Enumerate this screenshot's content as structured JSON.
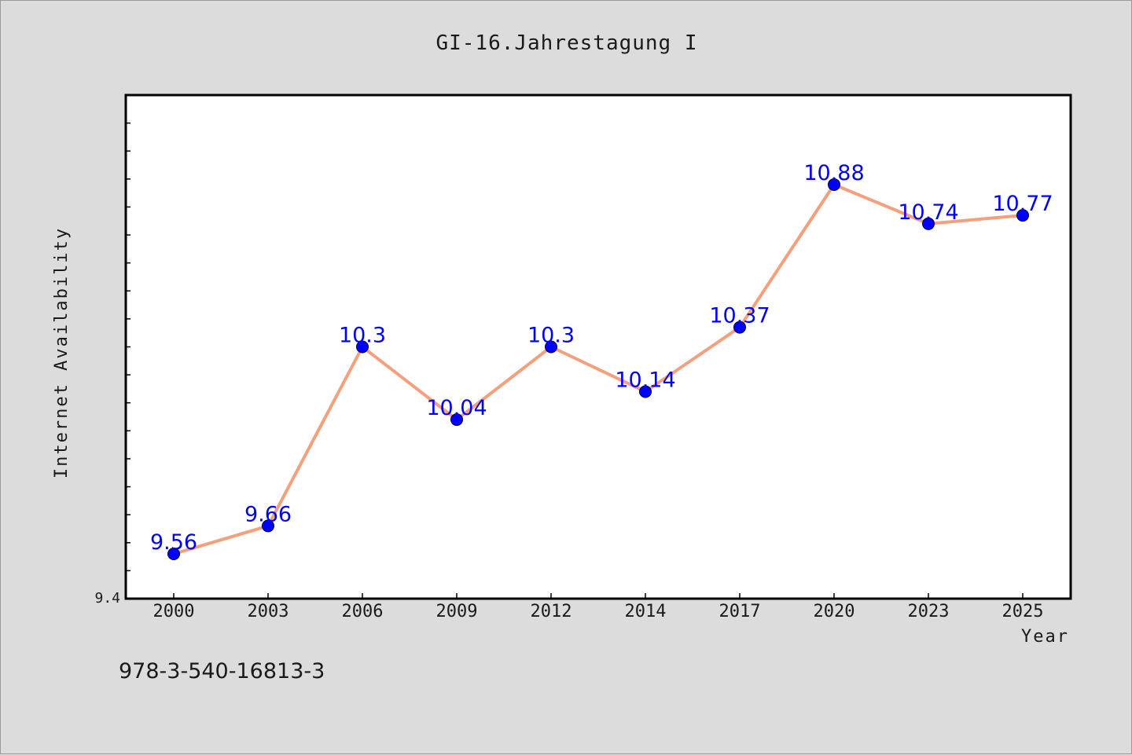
{
  "chart_data": {
    "type": "line",
    "title": "GI-16.Jahrestagung I",
    "xlabel": "Year",
    "ylabel": "Internet Availability",
    "categories": [
      "2000",
      "2003",
      "2006",
      "2009",
      "2012",
      "2014",
      "2017",
      "2020",
      "2023",
      "2025"
    ],
    "series": [
      {
        "values": [
          9.56,
          9.66,
          10.3,
          10.04,
          10.3,
          10.14,
          10.37,
          10.88,
          10.74,
          10.77
        ]
      }
    ],
    "data_labels": [
      "9.56",
      "9.66",
      "10.3",
      "10.04",
      "10.3",
      "10.14",
      "10.37",
      "10.88",
      "10.74",
      "10.77"
    ],
    "ylim": [
      9.4,
      11.2
    ],
    "y_min_label": "9.4",
    "y_minor_tick_step": 0.1,
    "grid": false,
    "line_color": "#f4a07c",
    "marker_color": "#0000ff",
    "label_color": "#0000ff"
  },
  "footer": {
    "id_text": "978-3-540-16813-3"
  }
}
